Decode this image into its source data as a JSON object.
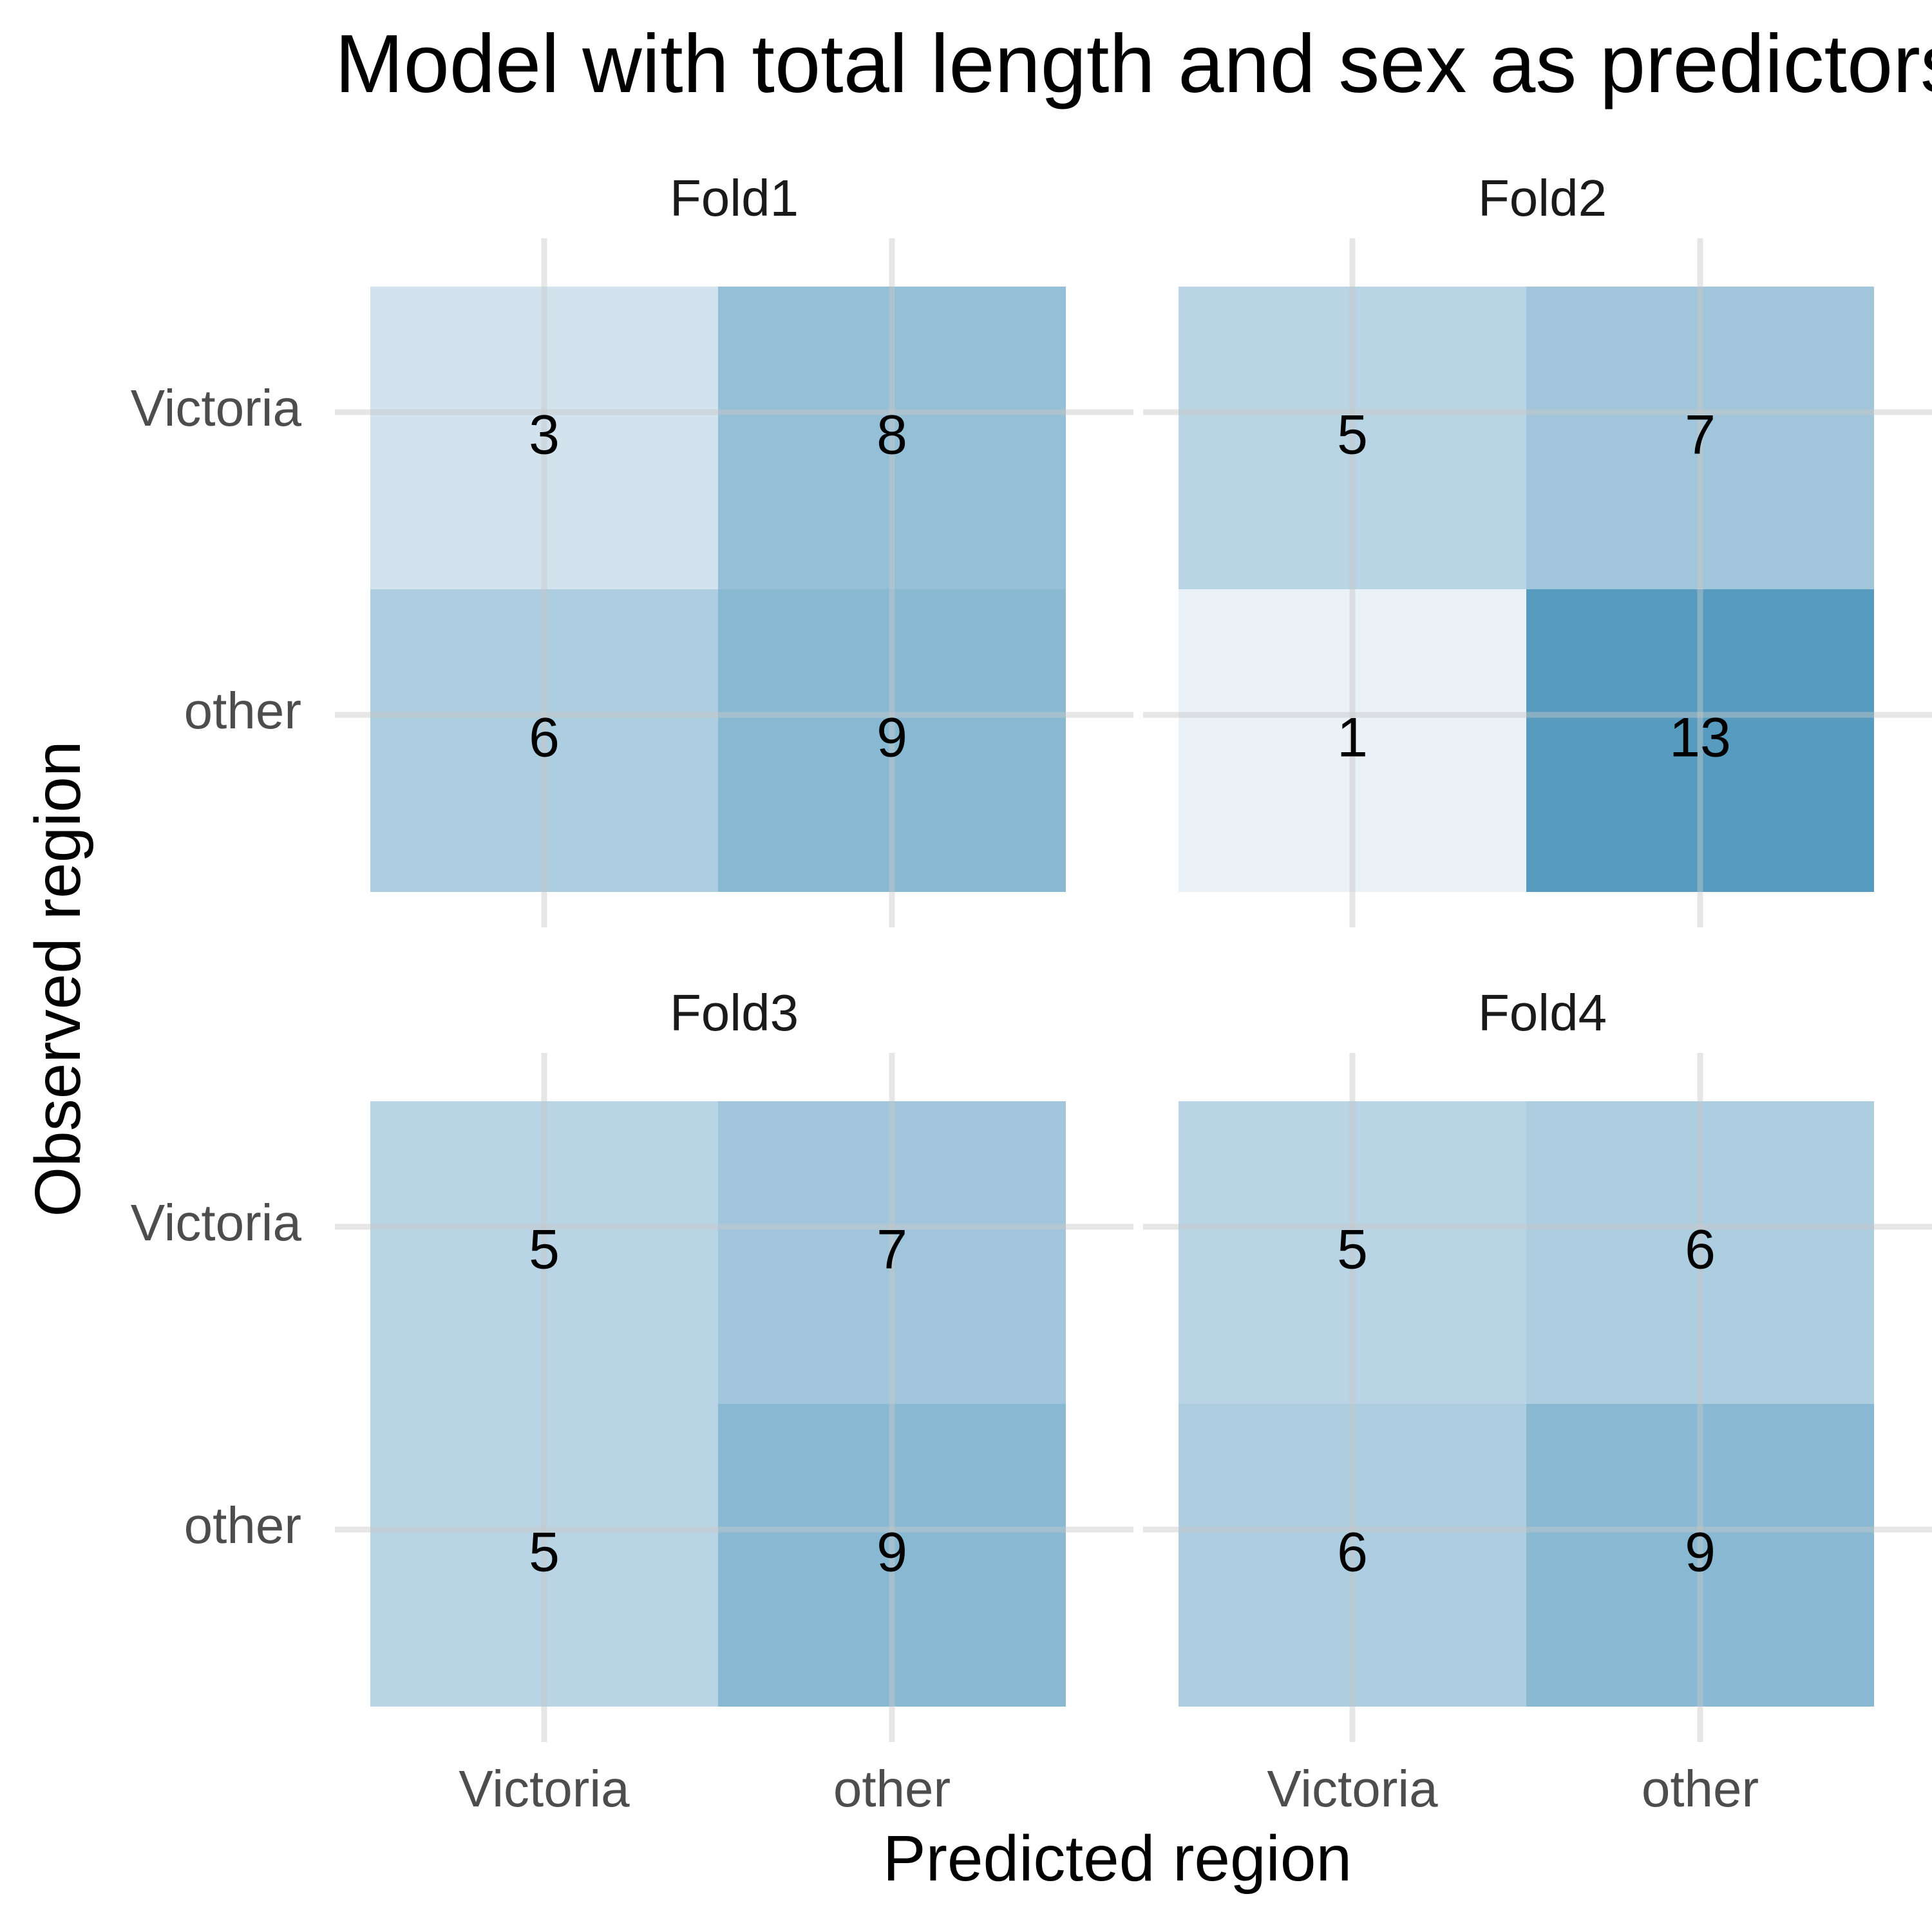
{
  "chart_data": {
    "type": "heatmap",
    "title": "Model with total length and sex as predictors",
    "xlabel": "Predicted region",
    "ylabel": "Observed region",
    "x_categories": [
      "Victoria",
      "other"
    ],
    "y_categories": [
      "Victoria",
      "other"
    ],
    "grid": true,
    "legend": "none",
    "color_low": "#eaf1f7",
    "color_high": "#579bbf",
    "value_range": [
      1,
      13
    ],
    "panels": [
      {
        "name": "Fold1",
        "values": [
          [
            3,
            8
          ],
          [
            6,
            9
          ]
        ]
      },
      {
        "name": "Fold2",
        "values": [
          [
            5,
            7
          ],
          [
            1,
            13
          ]
        ]
      },
      {
        "name": "Fold3",
        "values": [
          [
            5,
            7
          ],
          [
            5,
            9
          ]
        ]
      },
      {
        "name": "Fold4",
        "values": [
          [
            5,
            6
          ],
          [
            6,
            9
          ]
        ]
      }
    ]
  }
}
